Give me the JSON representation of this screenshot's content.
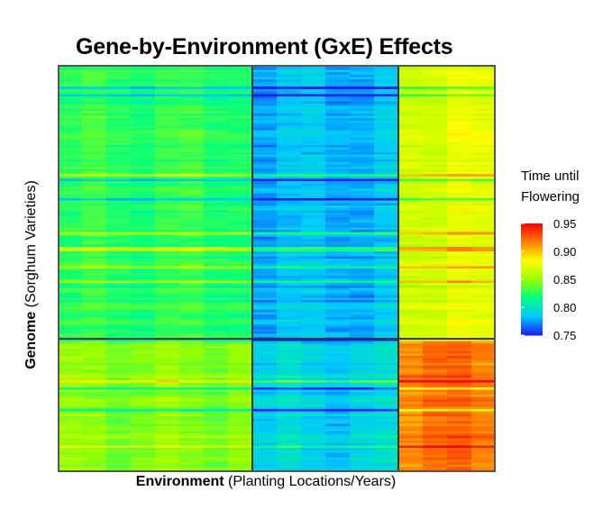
{
  "chart_data": {
    "type": "heatmap",
    "title": "Gene-by-Environment (GxE) Effects",
    "xlabel": {
      "bold": "Environment",
      "rest": "(Planting Locations/Years)"
    },
    "ylabel": {
      "bold": "Genome",
      "rest": "(Sorghum Varieties)"
    },
    "colorbar": {
      "title": [
        "Time until",
        "Flowering"
      ],
      "range": [
        0.75,
        0.95
      ],
      "ticks": [
        0.95,
        0.9,
        0.85,
        0.8,
        0.75
      ],
      "tick_labels": [
        "0.95",
        "0.90",
        "0.85",
        "0.80",
        "0.75"
      ]
    },
    "column_clusters": [
      {
        "columns": 8,
        "mean": 0.825
      },
      {
        "columns": 6,
        "mean": 0.782
      },
      {
        "columns": 4,
        "mean": 0.872
      }
    ],
    "row_clusters": [
      {
        "rows": 113,
        "means": [
          0.825,
          0.782,
          0.872
        ]
      },
      {
        "rows": 55,
        "means": [
          0.846,
          0.79,
          0.92
        ]
      }
    ],
    "colors": {
      "scale": [
        "#1a1aff",
        "#00c8ff",
        "#00ff80",
        "#9bff00",
        "#ffff00",
        "#ff8000",
        "#ff0000"
      ],
      "divider": "#333333"
    }
  }
}
